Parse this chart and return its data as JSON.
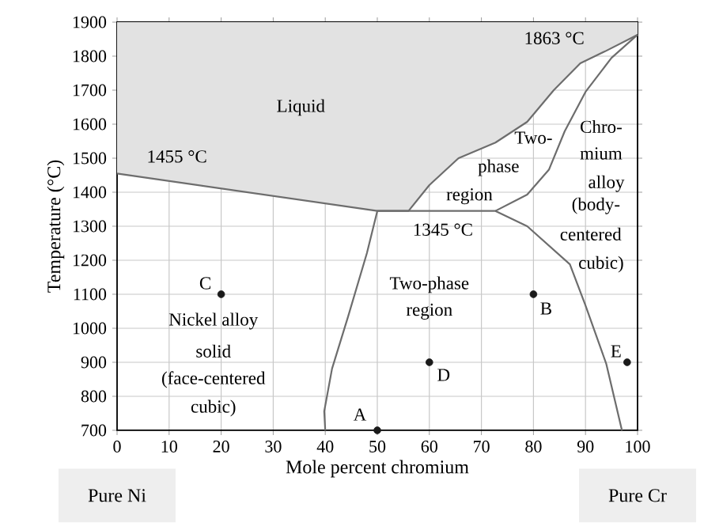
{
  "chart_data": {
    "type": "line",
    "xlabel": "Mole percent chromium",
    "ylabel": "Temperature (°C)",
    "xlim": [
      0,
      100
    ],
    "ylim": [
      700,
      1900
    ],
    "xticks": [
      0,
      10,
      20,
      30,
      40,
      50,
      60,
      70,
      80,
      90,
      100
    ],
    "yticks": [
      700,
      800,
      900,
      1000,
      1100,
      1200,
      1300,
      1400,
      1500,
      1600,
      1700,
      1800,
      1900
    ],
    "grid": true,
    "series": [
      {
        "color": "#6d6d6d",
        "x": [
          0,
          50,
          56,
          60,
          65.6,
          72.7,
          78.8,
          83.9,
          89,
          94,
          100
        ],
        "values": [
          1455,
          1345,
          1345,
          1421,
          1500,
          1546,
          1607,
          1700,
          1779,
          1816,
          1863
        ],
        "lower": [
          1455,
          1345,
          1345,
          1421,
          1500,
          1546,
          1607,
          1700,
          1779,
          1816,
          1863
        ],
        "upper": [
          1900,
          1900,
          1900,
          1900,
          1900,
          1900,
          1900,
          1900,
          1900,
          1900,
          1900
        ]
      },
      {
        "color": "#6d6d6d",
        "x": [
          72.7,
          78.8,
          83,
          86,
          90,
          95,
          100
        ],
        "values": [
          1345,
          1393,
          1467,
          1579,
          1695,
          1795,
          1863
        ]
      },
      {
        "color": "#6d6d6d",
        "x": [
          40,
          39.8,
          41.3,
          44.4,
          48,
          50,
          72.7,
          78.8,
          87,
          90,
          94,
          97
        ],
        "values": [
          700,
          756,
          881,
          1035,
          1221,
          1345,
          1345,
          1300,
          1188,
          1067,
          895,
          700
        ]
      },
      {
        "type": "scatter",
        "color": "#1a1a1a",
        "x": [
          50,
          80,
          20,
          60,
          98
        ],
        "values": [
          700,
          1100,
          1100,
          900,
          900
        ]
      }
    ],
    "annotations": [
      "Liquid",
      "1455 °C",
      "1863 °C",
      "Two-",
      "phase",
      "region",
      "1345 °C",
      "Chro-",
      "mium",
      "alloy",
      "(body-",
      "centered",
      "cubic)",
      "Two-phase",
      "region",
      "Nickel alloy",
      "solid",
      "(face-centered",
      "cubic)",
      {
        "text": "A",
        "x": 50,
        "y": 700
      },
      {
        "text": "B",
        "x": 80,
        "y": 1100
      },
      {
        "text": "C",
        "x": 20,
        "y": 1100
      },
      {
        "text": "D",
        "x": 60,
        "y": 900
      },
      {
        "text": "E",
        "x": 98,
        "y": 900
      },
      "Pure Ni",
      "Pure Cr"
    ]
  }
}
